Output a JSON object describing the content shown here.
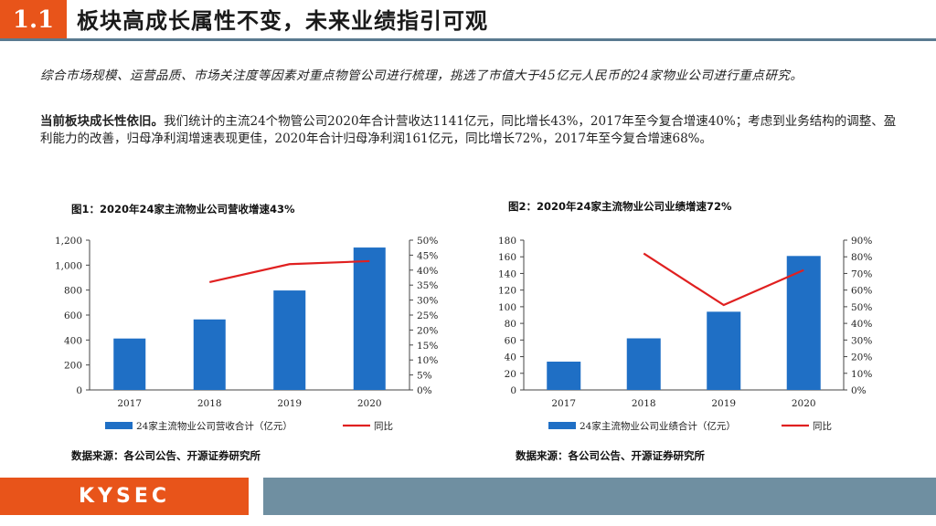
{
  "header": {
    "section_number": "1.1",
    "title": "板块高成长属性不变，未来业绩指引可观"
  },
  "intro": "综合市场规模、运营品质、市场关注度等因素对重点物管公司进行梳理，挑选了市值大于45亿元人民币的24家物业公司进行重点研究。",
  "highlight": {
    "lead": "当前板块成长性依旧。",
    "body": "我们统计的主流24个物管公司2020年合计营收达1141亿元，同比增长43%，2017年至今复合增速40%；考虑到业务结构的调整、盈利能力的改善，归母净利润增速表现更佳，2020年合计归母净利润161亿元，同比增长72%，2017年至今复合增速68%。"
  },
  "chart_data": [
    {
      "type": "bar",
      "title": "图1：2020年24家主流物业公司营收增速43%",
      "categories": [
        "2017",
        "2018",
        "2019",
        "2020"
      ],
      "series": [
        {
          "name": "24家主流物业公司营收合计（亿元）",
          "kind": "bar",
          "axis": "left",
          "color": "#1f6fc5",
          "values": [
            412,
            565,
            797,
            1141
          ]
        },
        {
          "name": "同比",
          "kind": "line",
          "axis": "right",
          "color": "#e02020",
          "values": [
            null,
            36,
            42,
            43
          ]
        }
      ],
      "yleft": {
        "min": 0,
        "max": 1200,
        "ticks": [
          "0",
          "200",
          "400",
          "600",
          "800",
          "1,000",
          "1,200"
        ]
      },
      "yright": {
        "min": 0,
        "max": 50,
        "ticks": [
          "0%",
          "5%",
          "10%",
          "15%",
          "20%",
          "25%",
          "30%",
          "35%",
          "40%",
          "45%",
          "50%"
        ]
      },
      "source": "数据来源：各公司公告、开源证券研究所"
    },
    {
      "type": "bar",
      "title": "图2：2020年24家主流物业公司业绩增速72%",
      "categories": [
        "2017",
        "2018",
        "2019",
        "2020"
      ],
      "series": [
        {
          "name": "24家主流物业公司业绩合计（亿元）",
          "kind": "bar",
          "axis": "left",
          "color": "#1f6fc5",
          "values": [
            34,
            62,
            94,
            161
          ]
        },
        {
          "name": "同比",
          "kind": "line",
          "axis": "right",
          "color": "#e02020",
          "values": [
            null,
            82,
            51,
            72
          ]
        }
      ],
      "yleft": {
        "min": 0,
        "max": 180,
        "ticks": [
          "0",
          "20",
          "40",
          "60",
          "80",
          "100",
          "120",
          "140",
          "160",
          "180"
        ]
      },
      "yright": {
        "min": 0,
        "max": 90,
        "ticks": [
          "0%",
          "10%",
          "20%",
          "30%",
          "40%",
          "50%",
          "60%",
          "70%",
          "80%",
          "90%"
        ]
      },
      "source": "数据来源：各公司公告、开源证券研究所"
    }
  ],
  "footer": {
    "logo": "KYSEC"
  }
}
